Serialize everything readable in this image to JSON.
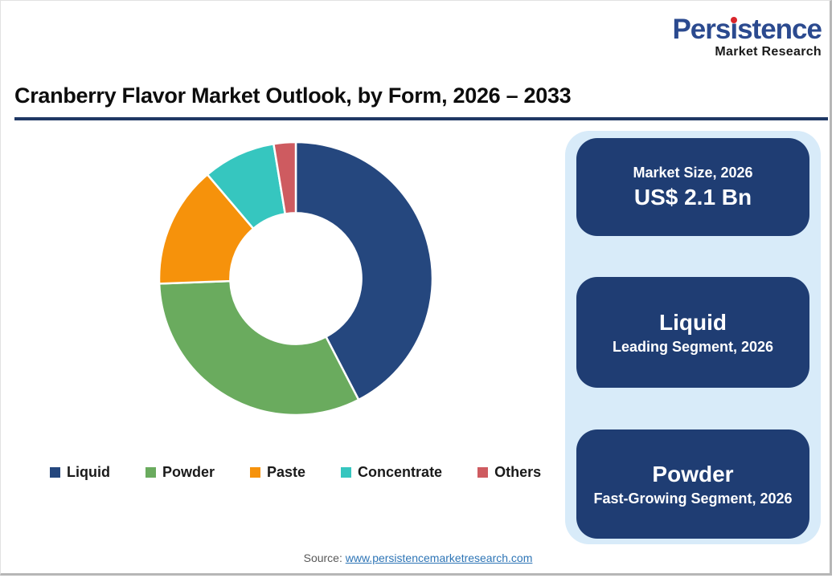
{
  "header": {
    "title": "Cranberry Flavor Market Outlook, by Form, 2026 – 2033"
  },
  "logo": {
    "full_name": "Persistence",
    "display": {
      "prefix": "Pers",
      "stem": "ı",
      "suffix": "stence"
    },
    "subtitle": "Market Research"
  },
  "colors": {
    "title_underline": "#1F3864",
    "panel_bg": "#D8EBF9",
    "card_bg": "#1F3D73",
    "card_text": "#FFFFFF",
    "brand_blue": "#2B4A8F",
    "brand_dot_red": "#D9262C",
    "link_blue": "#2E75B6",
    "source_gray": "#595959"
  },
  "chart_data": {
    "type": "pie",
    "subtype": "donut",
    "title": "Cranberry Flavor Market Outlook, by Form, 2026 – 2033",
    "categories": [
      "Liquid",
      "Powder",
      "Paste",
      "Concentrate",
      "Others"
    ],
    "values": [
      42.4,
      32.0,
      14.4,
      8.6,
      2.6
    ],
    "unit": "% share (estimated from arc angles; no data labels shown)",
    "colors": [
      "#25477E",
      "#6AAB5E",
      "#F6920B",
      "#36C6BF",
      "#CE5B60"
    ],
    "start_angle_deg": 0,
    "clockwise": true,
    "inner_radius_ratio": 0.48,
    "legend_position": "bottom",
    "data_labels": false
  },
  "cards": [
    {
      "line_small": "Market Size, 2026",
      "line_big": "US$ 2.1 Bn"
    },
    {
      "line_big": "Liquid",
      "line_small": "Leading Segment, 2026"
    },
    {
      "line_big": "Powder",
      "line_small": "Fast-Growing Segment, 2026"
    }
  ],
  "source": {
    "label": "Source:",
    "link": "www.persistencemarketresearch.com"
  }
}
